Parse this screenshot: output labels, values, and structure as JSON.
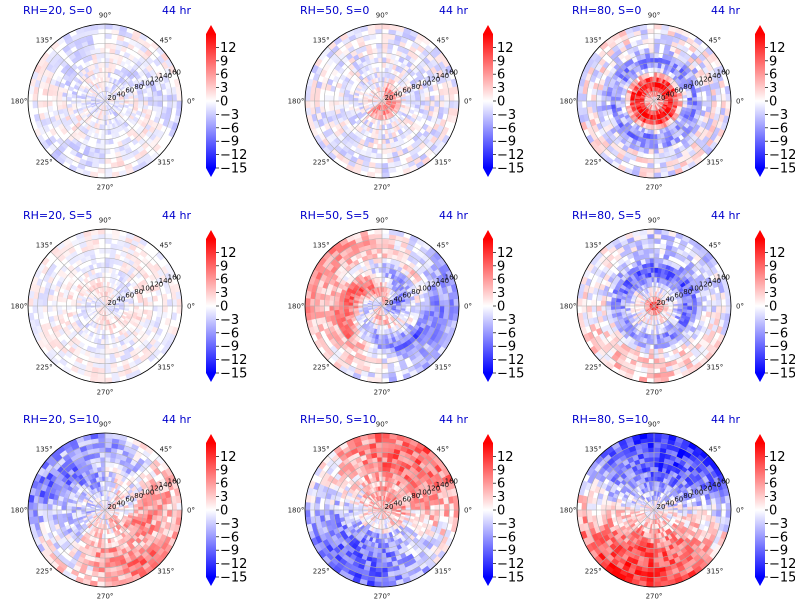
{
  "figure": {
    "title_color": "#0000cc",
    "colormap": [
      "#0000ff",
      "#ffffff",
      "#ff0000"
    ]
  },
  "chart_data": [
    {
      "type": "heatmap",
      "projection": "polar",
      "title_left": "RH=20, S=0",
      "title_right": "44 hr",
      "angle_ticks": [
        "0°",
        "45°",
        "90°",
        "135°",
        "180°",
        "225°",
        "270°",
        "315°"
      ],
      "radius_ticks": [
        "20",
        "40",
        "60",
        "80",
        "100",
        "120",
        "140",
        "160"
      ],
      "colorbar": {
        "range": [
          -15,
          15
        ],
        "extend": "both",
        "ticks": [
          "12",
          "9",
          "6",
          "3",
          "0",
          "−3",
          "−6",
          "−9",
          "−12",
          "−15"
        ]
      },
      "pattern": "weak_noise",
      "intensity": 0.45
    },
    {
      "type": "heatmap",
      "projection": "polar",
      "title_left": "RH=50, S=0",
      "title_right": "44 hr",
      "angle_ticks": [
        "0°",
        "45°",
        "90°",
        "135°",
        "180°",
        "225°",
        "270°",
        "315°"
      ],
      "radius_ticks": [
        "20",
        "40",
        "60",
        "80",
        "100",
        "120",
        "140",
        "160"
      ],
      "colorbar": {
        "range": [
          -15,
          15
        ],
        "extend": "both",
        "ticks": [
          "12",
          "9",
          "6",
          "3",
          "0",
          "−3",
          "−6",
          "−9",
          "−12",
          "−15"
        ]
      },
      "pattern": "center_red",
      "intensity": 0.6
    },
    {
      "type": "heatmap",
      "projection": "polar",
      "title_left": "RH=80, S=0",
      "title_right": "44 hr",
      "angle_ticks": [
        "0°",
        "45°",
        "90°",
        "135°",
        "180°",
        "225°",
        "270°",
        "315°"
      ],
      "radius_ticks": [
        "20",
        "40",
        "60",
        "80",
        "100",
        "120",
        "140",
        "160"
      ],
      "colorbar": {
        "range": [
          -15,
          15
        ],
        "extend": "both",
        "ticks": [
          "12",
          "9",
          "6",
          "3",
          "0",
          "−3",
          "−6",
          "−9",
          "−12",
          "−15"
        ]
      },
      "pattern": "strong_center_ring",
      "intensity": 0.95
    },
    {
      "type": "heatmap",
      "projection": "polar",
      "title_left": "RH=20, S=5",
      "title_right": "44 hr",
      "angle_ticks": [
        "0°",
        "45°",
        "90°",
        "135°",
        "180°",
        "225°",
        "270°",
        "315°"
      ],
      "radius_ticks": [
        "20",
        "40",
        "60",
        "80",
        "100",
        "120",
        "140",
        "160"
      ],
      "colorbar": {
        "range": [
          -15,
          15
        ],
        "extend": "both",
        "ticks": [
          "12",
          "9",
          "6",
          "3",
          "0",
          "−3",
          "−6",
          "−9",
          "−12",
          "−15"
        ]
      },
      "pattern": "weak_spiral",
      "intensity": 0.45
    },
    {
      "type": "heatmap",
      "projection": "polar",
      "title_left": "RH=50, S=5",
      "title_right": "44 hr",
      "angle_ticks": [
        "0°",
        "45°",
        "90°",
        "135°",
        "180°",
        "225°",
        "270°",
        "315°"
      ],
      "radius_ticks": [
        "20",
        "40",
        "60",
        "80",
        "100",
        "120",
        "140",
        "160"
      ],
      "colorbar": {
        "range": [
          -15,
          15
        ],
        "extend": "both",
        "ticks": [
          "12",
          "9",
          "6",
          "3",
          "0",
          "−3",
          "−6",
          "−9",
          "−12",
          "−15"
        ]
      },
      "pattern": "spiral_west_red",
      "intensity": 0.7
    },
    {
      "type": "heatmap",
      "projection": "polar",
      "title_left": "RH=80, S=5",
      "title_right": "44 hr",
      "angle_ticks": [
        "0°",
        "45°",
        "90°",
        "135°",
        "180°",
        "225°",
        "270°",
        "315°"
      ],
      "radius_ticks": [
        "20",
        "40",
        "60",
        "80",
        "100",
        "120",
        "140",
        "160"
      ],
      "colorbar": {
        "range": [
          -15,
          15
        ],
        "extend": "both",
        "ticks": [
          "12",
          "9",
          "6",
          "3",
          "0",
          "−3",
          "−6",
          "−9",
          "−12",
          "−15"
        ]
      },
      "pattern": "center_red_blue_ring",
      "intensity": 0.85
    },
    {
      "type": "heatmap",
      "projection": "polar",
      "title_left": "RH=20, S=10",
      "title_right": "44 hr",
      "angle_ticks": [
        "0°",
        "45°",
        "90°",
        "135°",
        "180°",
        "225°",
        "270°",
        "315°"
      ],
      "radius_ticks": [
        "20",
        "40",
        "60",
        "80",
        "100",
        "120",
        "140",
        "160"
      ],
      "colorbar": {
        "range": [
          -15,
          15
        ],
        "extend": "both",
        "ticks": [
          "12",
          "9",
          "6",
          "3",
          "0",
          "−3",
          "−6",
          "−9",
          "−12",
          "−15"
        ]
      },
      "pattern": "se_red_nw_blue",
      "intensity": 0.75
    },
    {
      "type": "heatmap",
      "projection": "polar",
      "title_left": "RH=50, S=10",
      "title_right": "44 hr",
      "angle_ticks": [
        "0°",
        "45°",
        "90°",
        "135°",
        "180°",
        "225°",
        "270°",
        "315°"
      ],
      "radius_ticks": [
        "20",
        "40",
        "60",
        "80",
        "100",
        "120",
        "140",
        "160"
      ],
      "colorbar": {
        "range": [
          -15,
          15
        ],
        "extend": "both",
        "ticks": [
          "12",
          "9",
          "6",
          "3",
          "0",
          "−3",
          "−6",
          "−9",
          "−12",
          "−15"
        ]
      },
      "pattern": "ne_red_sw_blue",
      "intensity": 0.8
    },
    {
      "type": "heatmap",
      "projection": "polar",
      "title_left": "RH=80, S=10",
      "title_right": "44 hr",
      "angle_ticks": [
        "0°",
        "45°",
        "90°",
        "135°",
        "180°",
        "225°",
        "270°",
        "315°"
      ],
      "radius_ticks": [
        "20",
        "40",
        "60",
        "80",
        "100",
        "120",
        "140",
        "160"
      ],
      "colorbar": {
        "range": [
          -15,
          15
        ],
        "extend": "both",
        "ticks": [
          "12",
          "9",
          "6",
          "3",
          "0",
          "−3",
          "−6",
          "−9",
          "−12",
          "−15"
        ]
      },
      "pattern": "n_blue_sw_red",
      "intensity": 0.85
    }
  ]
}
